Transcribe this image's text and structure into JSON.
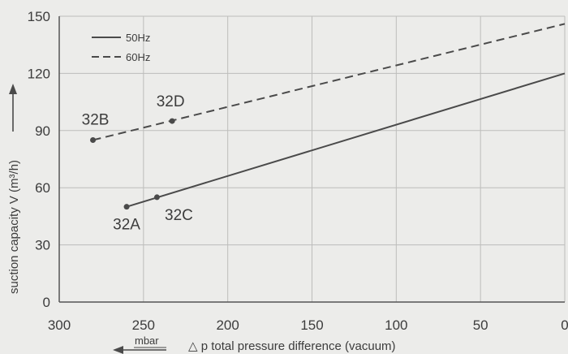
{
  "chart_data": {
    "type": "line",
    "xlabel": "△ p total pressure difference (vacuum)",
    "ylabel": "suction capacity V (m³/h)",
    "x_unit_label": "mbar",
    "xlim": [
      300,
      0
    ],
    "ylim": [
      0,
      150
    ],
    "x_ticks": [
      "300",
      "250",
      "200",
      "150",
      "100",
      "50",
      "0"
    ],
    "y_ticks": [
      "0",
      "30",
      "60",
      "90",
      "120",
      "150"
    ],
    "grid": true,
    "legend_position": "top-left",
    "series": [
      {
        "name": "50Hz",
        "line_style": "solid",
        "color": "#4a4a4a",
        "x": [
          260,
          0
        ],
        "y": [
          50,
          120
        ]
      },
      {
        "name": "60Hz",
        "line_style": "dashed",
        "color": "#4a4a4a",
        "x": [
          280,
          0
        ],
        "y": [
          85,
          146
        ]
      }
    ],
    "annotations": [
      {
        "label": "32A",
        "x": 260,
        "y": 50
      },
      {
        "label": "32C",
        "x": 242,
        "y": 55
      },
      {
        "label": "32B",
        "x": 280,
        "y": 85
      },
      {
        "label": "32D",
        "x": 233,
        "y": 95
      }
    ]
  }
}
